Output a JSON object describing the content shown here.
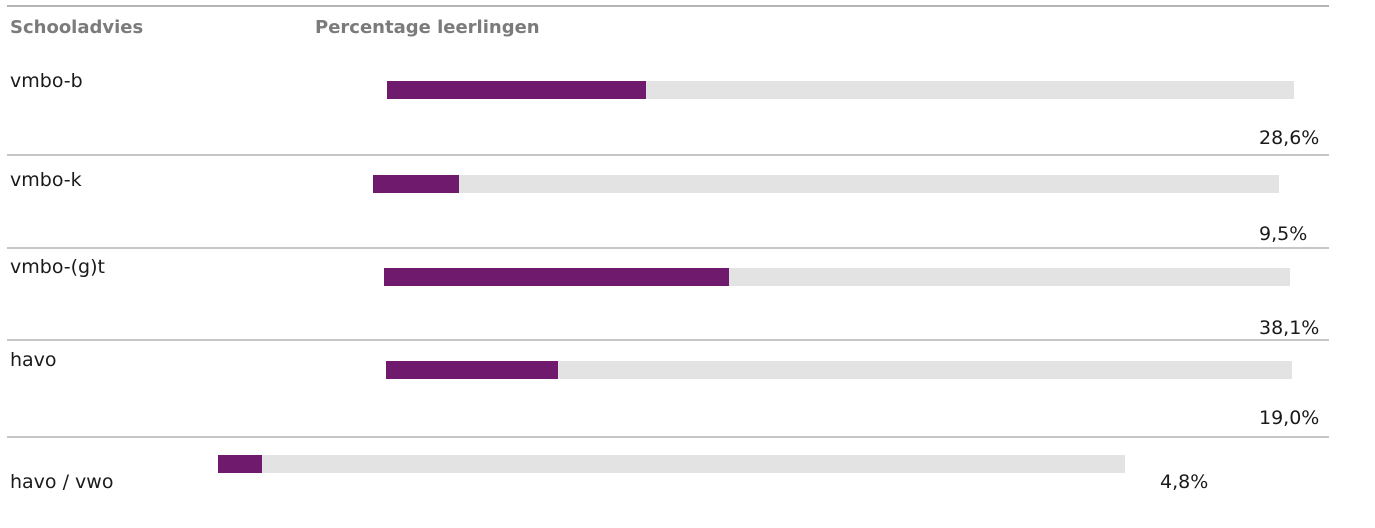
{
  "headers": {
    "advice": "Schooladvies",
    "percentage": "Percentage leerlingen"
  },
  "colors": {
    "bar_fill": "#6f1a6c",
    "bar_track": "#e3e3e3"
  },
  "chart_data": {
    "type": "bar",
    "orientation": "horizontal",
    "categories": [
      "vmbo-b",
      "vmbo-k",
      "vmbo-(g)t",
      "havo",
      "havo / vwo"
    ],
    "values": [
      28.6,
      9.5,
      38.1,
      19.0,
      4.8
    ],
    "value_labels": [
      "28,6%",
      "9,5%",
      "38,1%",
      "19,0%",
      "4,8%"
    ],
    "xlim": [
      0,
      100
    ],
    "unit": "%",
    "title": "",
    "xlabel": "",
    "ylabel": ""
  }
}
